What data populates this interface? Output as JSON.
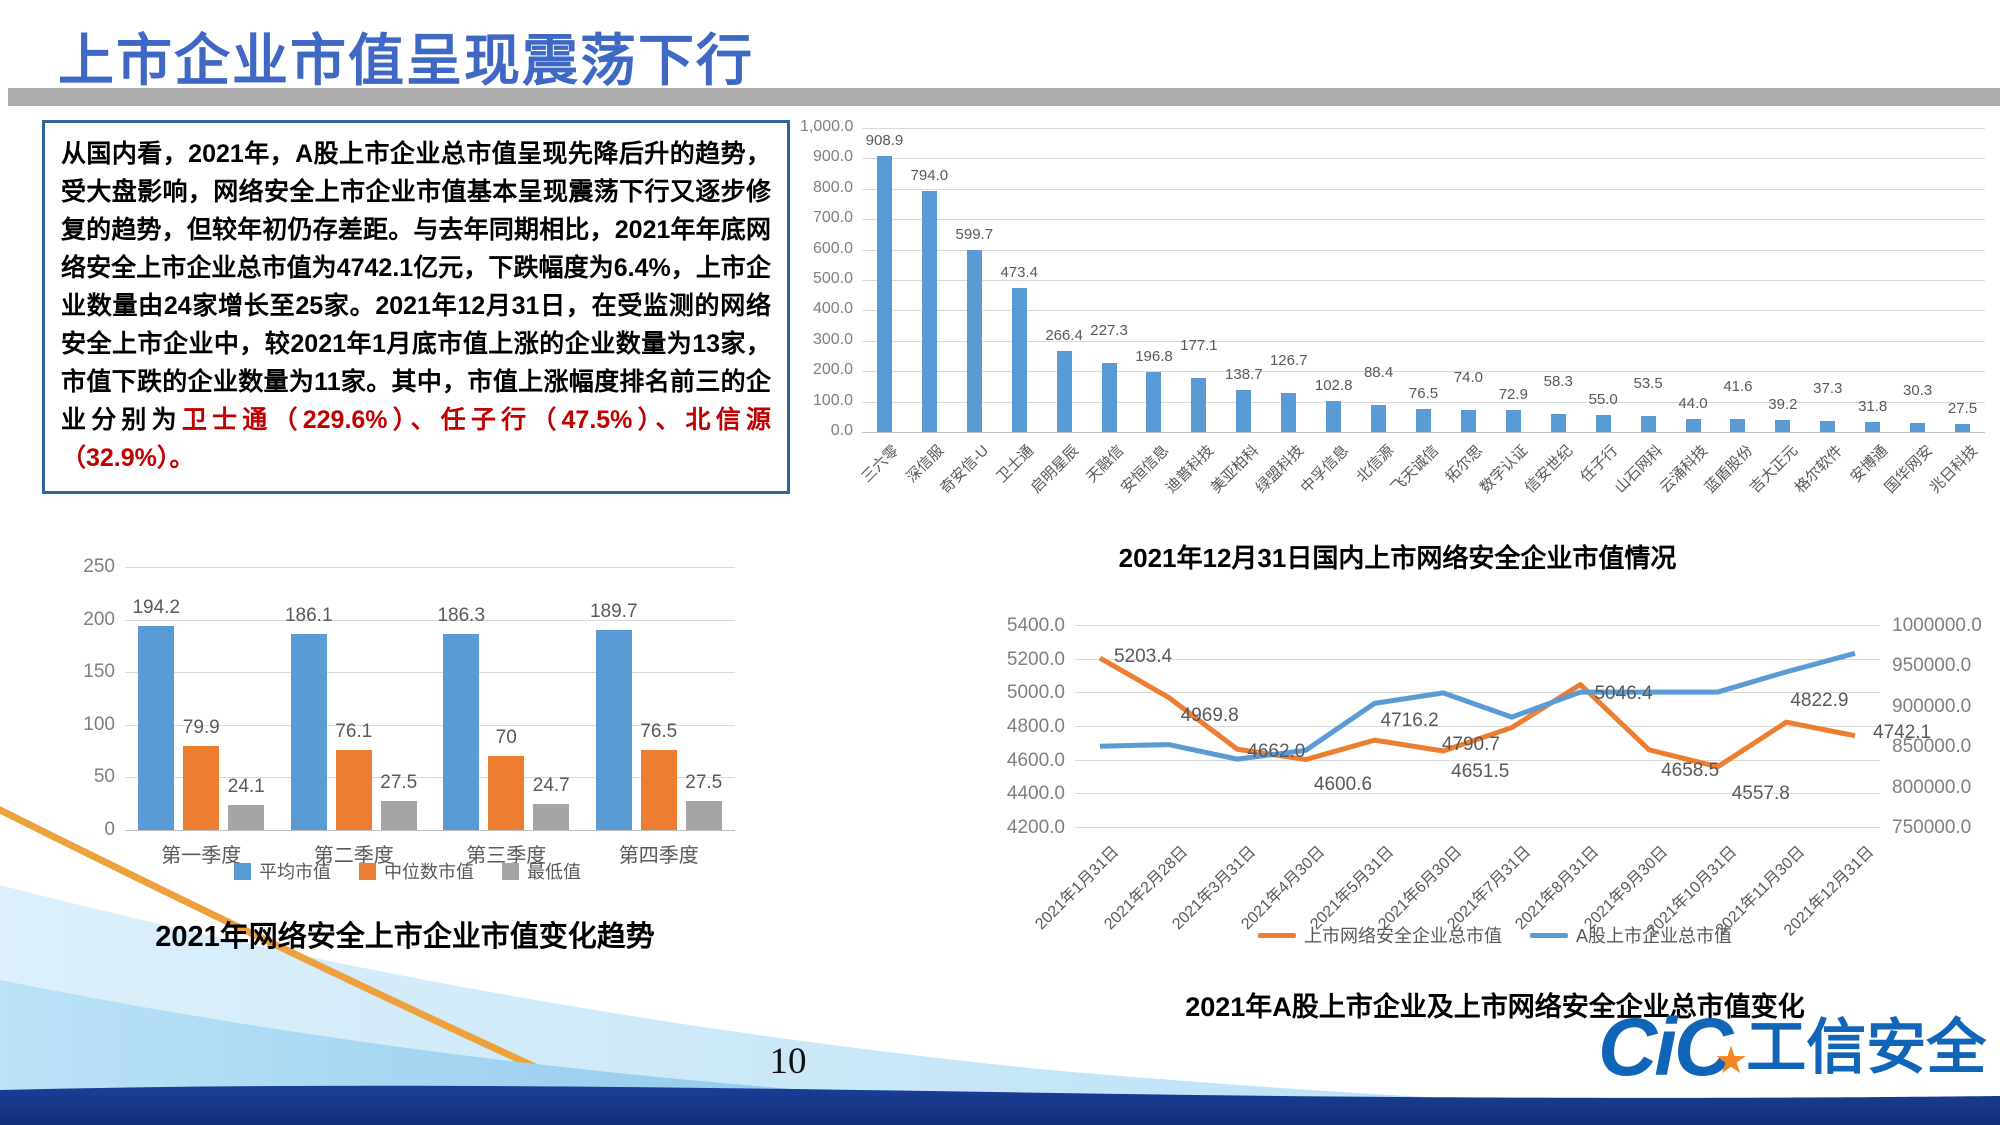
{
  "slide": {
    "title": "上市企业市值呈现震荡下行",
    "page_number": "10",
    "logo": {
      "cic": "CiC",
      "star": "★",
      "name": "工信安全"
    }
  },
  "summary": {
    "text": "从国内看，2021年，A股上市企业总市值呈现先降后升的趋势，受大盘影响，网络安全上市企业市值基本呈现震荡下行又逐步修复的趋势，但较年初仍存差距。与去年同期相比，2021年年底网络安全上市企业总市值为4742.1亿元，下跌幅度为6.4%，上市企业数量由24家增长至25家。2021年12月31日，在受监测的网络安全上市企业中，较2021年1月底市值上涨的企业数量为13家，市值下跌的企业数量为11家。其中，市值上涨幅度排名前三的企业分别为",
    "highlight": "卫士通（229.6%）、任子行（47.5%）、北信源（32.9%）。"
  },
  "chart_data": [
    {
      "id": "company_market_cap",
      "type": "bar",
      "title": "2021年12月31日国内上市网络安全企业市值情况",
      "categories": [
        "三六零",
        "深信服",
        "奇安信-U",
        "卫士通",
        "启明星辰",
        "天融信",
        "安恒信息",
        "迪普科技",
        "美亚柏科",
        "绿盟科技",
        "中孚信息",
        "北信源",
        "飞天诚信",
        "拓尔思",
        "数字认证",
        "信安世纪",
        "任子行",
        "山石网科",
        "云涌科技",
        "蓝盾股份",
        "吉大正元",
        "格尔软件",
        "安博通",
        "国华网安",
        "兆日科技"
      ],
      "values": [
        "908.9",
        "794.0",
        "599.7",
        "473.4",
        "266.4",
        "227.3",
        "196.8",
        "177.1",
        "138.7",
        "126.7",
        "102.8",
        "88.4",
        "76.5",
        "74.0",
        "72.9",
        "58.3",
        "55.0",
        "53.5",
        "44.0",
        "41.6",
        "39.2",
        "37.3",
        "31.8",
        "30.3",
        "27.5"
      ],
      "ylim": [
        0,
        1000
      ],
      "ytick_step": 100,
      "bar_color": "#5B9BD5",
      "grid": true,
      "legend": "none"
    },
    {
      "id": "quarterly_market_cap",
      "type": "grouped_bar",
      "title": "2021年网络安全上市企业市值变化趋势",
      "categories": [
        "第一季度",
        "第二季度",
        "第三季度",
        "第四季度"
      ],
      "series": [
        {
          "name": "平均市值",
          "color": "#5B9BD5",
          "values": [
            "194.2",
            "186.1",
            "186.3",
            "189.7"
          ]
        },
        {
          "name": "中位数市值",
          "color": "#ED7D31",
          "values": [
            "79.9",
            "76.1",
            "70",
            "76.5"
          ]
        },
        {
          "name": "最低值",
          "color": "#A5A5A5",
          "values": [
            "24.1",
            "27.5",
            "24.7",
            "27.5"
          ]
        }
      ],
      "ylim": [
        0,
        250
      ],
      "ytick_step": 50,
      "grid": true,
      "legend": "bottom"
    },
    {
      "id": "total_market_cap_trend",
      "type": "line",
      "title": "2021年A股上市企业及上市网络安全企业总市值变化",
      "x": [
        "2021年1月31日",
        "2021年2月28日",
        "2021年3月31日",
        "2021年4月30日",
        "2021年5月31日",
        "2021年6月30日",
        "2021年7月31日",
        "2021年8月31日",
        "2021年9月30日",
        "2021年10月31日",
        "2021年11月30日",
        "2021年12月31日"
      ],
      "series": [
        {
          "name": "上市网络安全企业总市值",
          "axis": "left",
          "color": "#ED7D31",
          "values": [
            "5203.4",
            "4969.8",
            "4662.0",
            "4600.6",
            "4716.2",
            "4651.5",
            "4790.7",
            "5046.4",
            "4658.5",
            "4557.8",
            "4822.9",
            "4742.1"
          ],
          "labels_shown": true
        },
        {
          "name": "A股上市企业总市值",
          "axis": "right",
          "color": "#5B9BD5",
          "values": [
            850000,
            852000,
            834000,
            845000,
            903000,
            916000,
            886000,
            917000,
            917000,
            917000,
            942000,
            965000
          ],
          "labels_shown": false
        }
      ],
      "left_ylim": [
        4200,
        5400
      ],
      "left_tick_step": 200,
      "right_ylim": [
        750000,
        1000000
      ],
      "right_tick_step": 50000,
      "grid": true,
      "legend": "bottom"
    }
  ]
}
